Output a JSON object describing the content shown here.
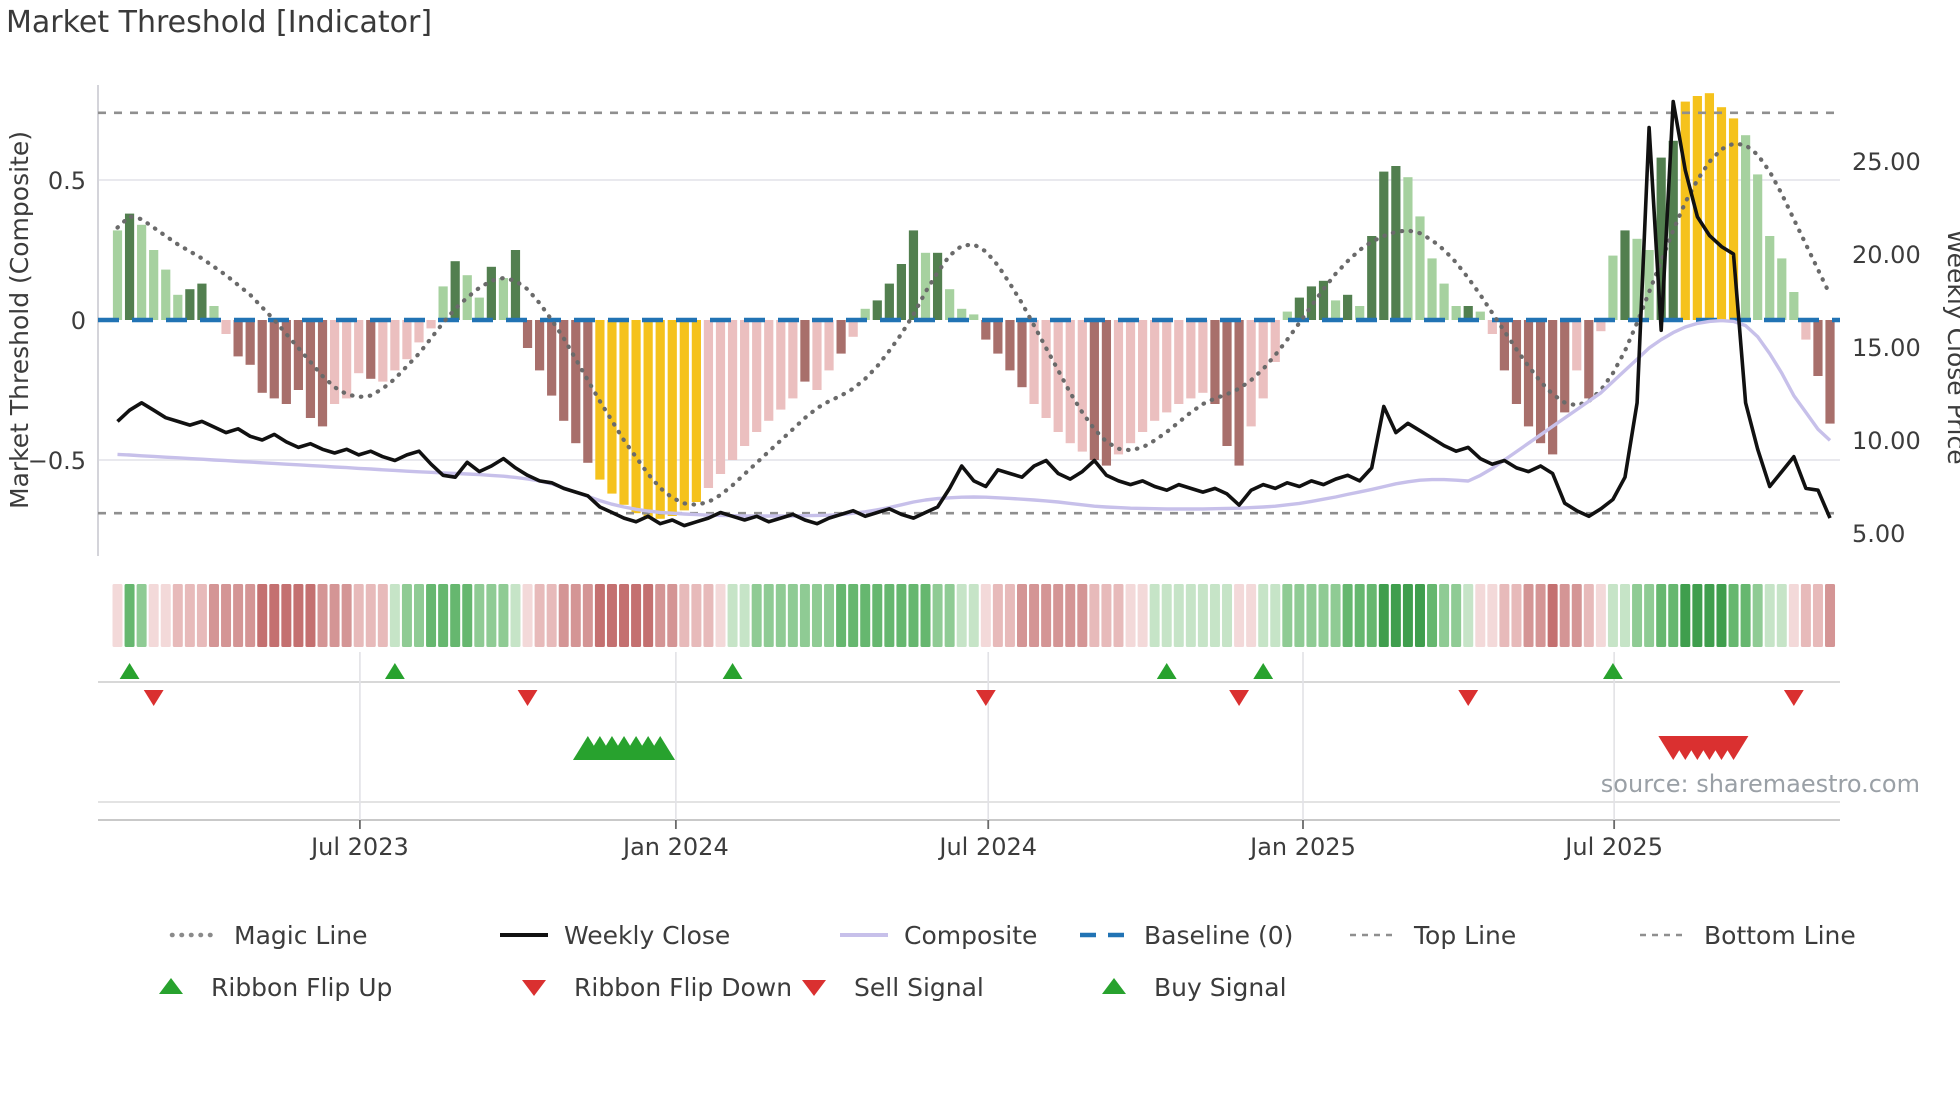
{
  "title": "Market Threshold [Indicator]",
  "source": "source: sharemaestro.com",
  "left_axis": {
    "title": "Market Threshold (Composite)",
    "tick_labels": [
      "0.5",
      "0",
      "−0.5"
    ],
    "tick_values": [
      0.5,
      0,
      -0.5
    ]
  },
  "right_axis": {
    "title": "Weekly Close Price",
    "tick_labels": [
      "25.00",
      "20.00",
      "15.00",
      "10.00",
      "5.00"
    ],
    "tick_values": [
      25,
      20,
      15,
      10,
      5
    ]
  },
  "x_axis": {
    "ticks": [
      {
        "label": "Jul 2023",
        "week": 20.1
      },
      {
        "label": "Jan 2024",
        "week": 46.3
      },
      {
        "label": "Jul 2024",
        "week": 72.2
      },
      {
        "label": "Jan 2025",
        "week": 98.3
      },
      {
        "label": "Jul 2025",
        "week": 124.1
      }
    ]
  },
  "chart_data": {
    "type": "combo",
    "x_unit": "week_index",
    "weeks": 143,
    "left_range": [
      -0.84,
      0.84
    ],
    "right_range": [
      3.8,
      29.1
    ],
    "baseline": 0,
    "top_line": 0.74,
    "bottom_line": -0.69,
    "grid_values_left": [
      0.5,
      -0.5
    ],
    "bar_palette": {
      "lg": "#a6d19f",
      "dg": "#527f4f",
      "pk": "#ebbfbf",
      "rd": "#a86f6b",
      "yl": "#f5c21c"
    },
    "line_colors": {
      "magic": "#6a6a6a",
      "close": "#111111",
      "composite": "#c7c0ea",
      "baseline": "#2173b4",
      "guides": "#8f8f8f"
    },
    "bars": {
      "values": [
        0.32,
        0.38,
        0.34,
        0.25,
        0.18,
        0.09,
        0.11,
        0.13,
        0.05,
        -0.05,
        -0.13,
        -0.16,
        -0.26,
        -0.28,
        -0.3,
        -0.25,
        -0.35,
        -0.38,
        -0.3,
        -0.28,
        -0.19,
        -0.21,
        -0.22,
        -0.18,
        -0.14,
        -0.08,
        -0.03,
        0.12,
        0.21,
        0.16,
        0.08,
        0.19,
        0.15,
        0.25,
        -0.1,
        -0.18,
        -0.27,
        -0.36,
        -0.44,
        -0.51,
        -0.57,
        -0.62,
        -0.66,
        -0.69,
        -0.71,
        -0.71,
        -0.7,
        -0.68,
        -0.65,
        -0.6,
        -0.55,
        -0.5,
        -0.45,
        -0.4,
        -0.36,
        -0.32,
        -0.28,
        -0.22,
        -0.25,
        -0.18,
        -0.12,
        -0.06,
        0.04,
        0.07,
        0.13,
        0.2,
        0.32,
        0.24,
        0.24,
        0.11,
        0.04,
        0.02,
        -0.07,
        -0.12,
        -0.18,
        -0.24,
        -0.3,
        -0.35,
        -0.4,
        -0.44,
        -0.47,
        -0.5,
        -0.52,
        -0.48,
        -0.44,
        -0.4,
        -0.36,
        -0.33,
        -0.3,
        -0.28,
        -0.26,
        -0.3,
        -0.45,
        -0.52,
        -0.38,
        -0.28,
        -0.15,
        0.03,
        0.08,
        0.12,
        0.14,
        0.07,
        0.09,
        0.05,
        0.3,
        0.53,
        0.55,
        0.51,
        0.37,
        0.22,
        0.13,
        0.05,
        0.05,
        0.03,
        -0.05,
        -0.18,
        -0.3,
        -0.38,
        -0.44,
        -0.48,
        -0.33,
        -0.18,
        -0.28,
        -0.04,
        0.23,
        0.32,
        0.29,
        0.25,
        0.58,
        0.64,
        0.78,
        0.8,
        0.81,
        0.76,
        0.72,
        0.66,
        0.52,
        0.3,
        0.22,
        0.1,
        -0.07,
        -0.2,
        -0.37
      ],
      "colors": [
        "lg",
        "dg",
        "lg",
        "lg",
        "lg",
        "lg",
        "dg",
        "dg",
        "lg",
        "pk",
        "rd",
        "rd",
        "rd",
        "rd",
        "rd",
        "rd",
        "rd",
        "rd",
        "pk",
        "pk",
        "pk",
        "rd",
        "pk",
        "pk",
        "pk",
        "pk",
        "pk",
        "lg",
        "dg",
        "lg",
        "lg",
        "dg",
        "lg",
        "dg",
        "rd",
        "rd",
        "rd",
        "rd",
        "rd",
        "rd",
        "yl",
        "yl",
        "yl",
        "yl",
        "yl",
        "yl",
        "yl",
        "yl",
        "yl",
        "pk",
        "pk",
        "pk",
        "pk",
        "pk",
        "pk",
        "pk",
        "pk",
        "rd",
        "pk",
        "pk",
        "rd",
        "pk",
        "lg",
        "dg",
        "dg",
        "dg",
        "dg",
        "lg",
        "dg",
        "lg",
        "lg",
        "lg",
        "rd",
        "rd",
        "rd",
        "rd",
        "pk",
        "pk",
        "pk",
        "pk",
        "pk",
        "rd",
        "rd",
        "pk",
        "pk",
        "pk",
        "pk",
        "pk",
        "pk",
        "pk",
        "pk",
        "rd",
        "rd",
        "rd",
        "pk",
        "pk",
        "pk",
        "lg",
        "dg",
        "dg",
        "dg",
        "lg",
        "dg",
        "lg",
        "dg",
        "dg",
        "dg",
        "lg",
        "lg",
        "lg",
        "lg",
        "lg",
        "dg",
        "lg",
        "pk",
        "rd",
        "rd",
        "rd",
        "rd",
        "rd",
        "rd",
        "pk",
        "rd",
        "pk",
        "lg",
        "dg",
        "lg",
        "lg",
        "dg",
        "dg",
        "yl",
        "yl",
        "yl",
        "yl",
        "yl",
        "lg",
        "lg",
        "lg",
        "lg",
        "lg",
        "pk",
        "rd",
        "rd"
      ]
    },
    "magic_line": [
      0.33,
      0.37,
      0.36,
      0.33,
      0.3,
      0.27,
      0.245,
      0.22,
      0.19,
      0.16,
      0.125,
      0.09,
      0.045,
      0.0,
      -0.05,
      -0.1,
      -0.15,
      -0.2,
      -0.24,
      -0.265,
      -0.275,
      -0.27,
      -0.245,
      -0.21,
      -0.165,
      -0.12,
      -0.065,
      -0.01,
      0.04,
      0.08,
      0.115,
      0.14,
      0.15,
      0.14,
      0.11,
      0.06,
      0.0,
      -0.065,
      -0.14,
      -0.215,
      -0.29,
      -0.36,
      -0.43,
      -0.49,
      -0.55,
      -0.6,
      -0.635,
      -0.655,
      -0.66,
      -0.65,
      -0.625,
      -0.59,
      -0.55,
      -0.51,
      -0.47,
      -0.43,
      -0.39,
      -0.35,
      -0.315,
      -0.29,
      -0.27,
      -0.245,
      -0.21,
      -0.165,
      -0.11,
      -0.05,
      0.02,
      0.1,
      0.17,
      0.23,
      0.265,
      0.27,
      0.245,
      0.195,
      0.13,
      0.06,
      -0.02,
      -0.1,
      -0.18,
      -0.26,
      -0.33,
      -0.39,
      -0.435,
      -0.46,
      -0.465,
      -0.455,
      -0.43,
      -0.4,
      -0.365,
      -0.33,
      -0.3,
      -0.28,
      -0.265,
      -0.245,
      -0.215,
      -0.175,
      -0.125,
      -0.07,
      -0.01,
      0.05,
      0.11,
      0.165,
      0.21,
      0.25,
      0.28,
      0.3,
      0.315,
      0.32,
      0.31,
      0.285,
      0.25,
      0.205,
      0.15,
      0.09,
      0.025,
      -0.04,
      -0.105,
      -0.165,
      -0.22,
      -0.265,
      -0.295,
      -0.305,
      -0.29,
      -0.25,
      -0.19,
      -0.11,
      -0.01,
      0.1,
      0.21,
      0.32,
      0.42,
      0.5,
      0.565,
      0.61,
      0.63,
      0.625,
      0.59,
      0.53,
      0.45,
      0.36,
      0.27,
      0.18,
      0.09
    ],
    "weekly_close": [
      11.0,
      11.6,
      12.0,
      11.6,
      11.2,
      11.0,
      10.8,
      11.0,
      10.7,
      10.4,
      10.6,
      10.2,
      10.0,
      10.3,
      9.9,
      9.6,
      9.8,
      9.5,
      9.3,
      9.5,
      9.2,
      9.4,
      9.1,
      8.9,
      9.2,
      9.4,
      8.7,
      8.1,
      8.0,
      8.8,
      8.3,
      8.6,
      9.0,
      8.5,
      8.1,
      7.8,
      7.7,
      7.4,
      7.2,
      7.0,
      6.4,
      6.1,
      5.8,
      5.6,
      5.9,
      5.5,
      5.7,
      5.4,
      5.6,
      5.8,
      6.1,
      5.9,
      5.7,
      5.9,
      5.6,
      5.8,
      6.0,
      5.7,
      5.5,
      5.8,
      6.0,
      6.2,
      5.9,
      6.1,
      6.3,
      6.0,
      5.8,
      6.1,
      6.4,
      7.4,
      8.6,
      7.8,
      7.5,
      8.4,
      8.2,
      8.0,
      8.6,
      8.9,
      8.2,
      7.9,
      8.3,
      8.9,
      8.1,
      7.8,
      7.6,
      7.8,
      7.5,
      7.3,
      7.6,
      7.4,
      7.2,
      7.4,
      7.1,
      6.5,
      7.3,
      7.6,
      7.4,
      7.7,
      7.5,
      7.8,
      7.6,
      7.9,
      8.1,
      7.8,
      8.5,
      11.8,
      10.4,
      10.9,
      10.5,
      10.1,
      9.7,
      9.4,
      9.6,
      9.0,
      8.7,
      8.9,
      8.5,
      8.3,
      8.6,
      8.2,
      6.6,
      6.2,
      5.9,
      6.3,
      6.8,
      8.0,
      12.0,
      26.8,
      15.9,
      28.2,
      24.5,
      22.0,
      21.0,
      20.4,
      20.0,
      12.0,
      9.5,
      7.5,
      8.3,
      9.1,
      7.4,
      7.3,
      5.8
    ],
    "composite_line": [
      -0.48,
      -0.482,
      -0.485,
      -0.487,
      -0.49,
      -0.492,
      -0.495,
      -0.497,
      -0.5,
      -0.502,
      -0.505,
      -0.507,
      -0.51,
      -0.512,
      -0.515,
      -0.517,
      -0.52,
      -0.522,
      -0.525,
      -0.527,
      -0.53,
      -0.532,
      -0.535,
      -0.537,
      -0.54,
      -0.542,
      -0.544,
      -0.546,
      -0.548,
      -0.55,
      -0.552,
      -0.555,
      -0.558,
      -0.562,
      -0.568,
      -0.575,
      -0.585,
      -0.6,
      -0.615,
      -0.63,
      -0.645,
      -0.658,
      -0.668,
      -0.676,
      -0.682,
      -0.687,
      -0.69,
      -0.693,
      -0.695,
      -0.697,
      -0.698,
      -0.699,
      -0.7,
      -0.7,
      -0.7,
      -0.7,
      -0.7,
      -0.699,
      -0.698,
      -0.697,
      -0.695,
      -0.69,
      -0.685,
      -0.678,
      -0.67,
      -0.66,
      -0.65,
      -0.643,
      -0.638,
      -0.635,
      -0.633,
      -0.632,
      -0.633,
      -0.635,
      -0.637,
      -0.64,
      -0.643,
      -0.646,
      -0.65,
      -0.655,
      -0.66,
      -0.665,
      -0.668,
      -0.67,
      -0.672,
      -0.673,
      -0.674,
      -0.675,
      -0.675,
      -0.675,
      -0.675,
      -0.674,
      -0.673,
      -0.672,
      -0.67,
      -0.668,
      -0.665,
      -0.66,
      -0.655,
      -0.648,
      -0.64,
      -0.632,
      -0.623,
      -0.614,
      -0.605,
      -0.595,
      -0.585,
      -0.578,
      -0.572,
      -0.57,
      -0.57,
      -0.572,
      -0.575,
      -0.555,
      -0.53,
      -0.5,
      -0.47,
      -0.44,
      -0.41,
      -0.38,
      -0.35,
      -0.32,
      -0.29,
      -0.26,
      -0.22,
      -0.18,
      -0.14,
      -0.1,
      -0.07,
      -0.045,
      -0.025,
      -0.012,
      -0.005,
      -0.002,
      -0.005,
      -0.02,
      -0.06,
      -0.12,
      -0.19,
      -0.27,
      -0.33,
      -0.39,
      -0.43
    ],
    "ribbon": {
      "levels": [
        -1,
        3,
        2,
        -1,
        -1,
        -2,
        -2,
        -2,
        -3,
        -3,
        -3,
        -3,
        -4,
        -4,
        -4,
        -4,
        -4,
        -3,
        -3,
        -3,
        -2,
        -2,
        -2,
        1,
        2,
        2,
        3,
        3,
        3,
        3,
        2,
        2,
        2,
        1,
        -1,
        -2,
        -2,
        -3,
        -3,
        -3,
        -4,
        -4,
        -4,
        -4,
        -4,
        -3,
        -3,
        -2,
        -2,
        -2,
        -1,
        1,
        1,
        2,
        2,
        2,
        2,
        2,
        2,
        2,
        3,
        3,
        3,
        3,
        3,
        3,
        3,
        3,
        2,
        2,
        1,
        1,
        -1,
        -2,
        -2,
        -3,
        -3,
        -3,
        -3,
        -3,
        -3,
        -2,
        -2,
        -2,
        -1,
        -1,
        1,
        1,
        1,
        1,
        1,
        1,
        1,
        -1,
        -1,
        1,
        1,
        2,
        2,
        2,
        2,
        2,
        3,
        3,
        3,
        4,
        4,
        4,
        4,
        3,
        2,
        2,
        1,
        -1,
        -1,
        -2,
        -2,
        -3,
        -3,
        -4,
        -3,
        -3,
        -2,
        -1,
        1,
        1,
        2,
        2,
        3,
        3,
        4,
        4,
        4,
        4,
        3,
        3,
        2,
        1,
        1,
        -1,
        -2,
        -2,
        -3
      ],
      "palette": {
        "4": "#3f9e4d",
        "3": "#66b76f",
        "2": "#8fcb94",
        "1": "#c6e4c7",
        "-1": "#f3d9d9",
        "-2": "#e7baba",
        "-3": "#d49595",
        "-4": "#c47070"
      }
    },
    "signals": {
      "up_color": "#28a22e",
      "down_color": "#da3030",
      "ribbon_flip_up_weeks": [
        1,
        23,
        51,
        87,
        95,
        124
      ],
      "ribbon_flip_down_weeks": [
        3,
        34,
        72,
        93,
        112,
        139
      ],
      "buy_signal_weeks": [
        39,
        40,
        41,
        42,
        43,
        44,
        45
      ],
      "sell_signal_weeks": [
        129,
        130,
        131,
        132,
        133,
        134
      ]
    }
  },
  "legend": {
    "rows": [
      [
        {
          "label": "Magic Line",
          "marker": "dotted-line",
          "color": "#8a8a8a"
        },
        {
          "label": "Weekly Close",
          "marker": "solid-line",
          "color": "#111111"
        },
        {
          "label": "Composite",
          "marker": "solid-line",
          "color": "#c7c0ea"
        },
        {
          "label": "Baseline (0)",
          "marker": "dashed-line",
          "color": "#2173b4"
        },
        {
          "label": "Top Line",
          "marker": "small-dashed-line",
          "color": "#8f8f8f"
        },
        {
          "label": "Bottom Line",
          "marker": "small-dashed-line",
          "color": "#8f8f8f"
        }
      ],
      [
        {
          "label": "Ribbon Flip Up",
          "marker": "triangle-up",
          "color": "#28a22e"
        },
        {
          "label": "Ribbon Flip Down",
          "marker": "triangle-down",
          "color": "#da3030"
        },
        {
          "label": "Sell Signal",
          "marker": "triangle-down",
          "color": "#da3030"
        },
        {
          "label": "Buy Signal",
          "marker": "triangle-up",
          "color": "#28a22e"
        }
      ]
    ]
  }
}
